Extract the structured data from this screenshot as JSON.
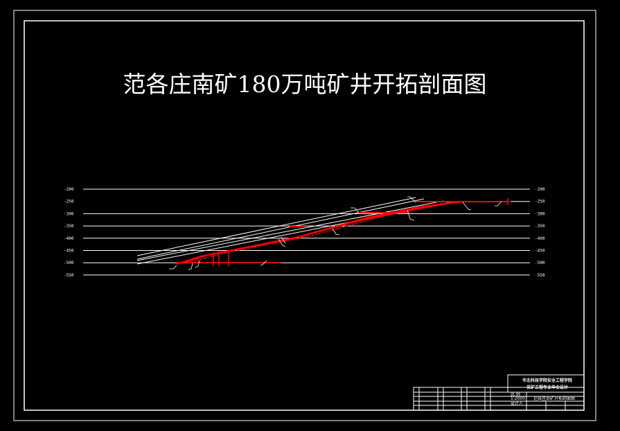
{
  "title": "范各庄南矿180万吨矿井开拓剖面图",
  "levels": [
    "-200",
    "-250",
    "-300",
    "-350",
    "-400",
    "-450",
    "-500",
    "-550"
  ],
  "colors": {
    "background": "#000000",
    "lines": "#ffffff",
    "seam": "#ff0000"
  },
  "title_block": {
    "school_line1": "华北科技学院安全工程学院",
    "school_line2": "采矿工程专业毕业设计",
    "drawing_name": "范各庄南矿开拓剖面图",
    "scale_label": "比 例",
    "scale_value": "1:2000",
    "designer_label": "设计人"
  }
}
